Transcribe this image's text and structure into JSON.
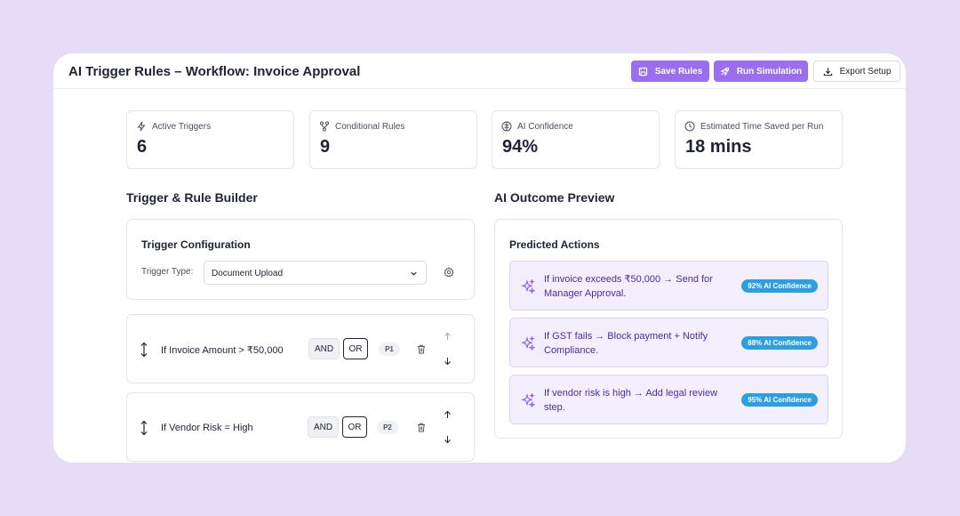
{
  "header": {
    "title": "AI Trigger Rules – Workflow: Invoice Approval",
    "save_label": "Save Rules",
    "run_label": "Run Simulation",
    "export_label": "Export Setup"
  },
  "stats": [
    {
      "label": "Active Triggers",
      "value": "6",
      "icon": "lightning-icon"
    },
    {
      "label": "Conditional Rules",
      "value": "9",
      "icon": "branch-icon"
    },
    {
      "label": "AI Confidence",
      "value": "94%",
      "icon": "brain-icon"
    },
    {
      "label": "Estimated Time Saved per Run",
      "value": "18 mins",
      "icon": "clock-icon"
    }
  ],
  "builder": {
    "title": "Trigger & Rule Builder",
    "config_title": "Trigger Configuration",
    "trigger_type_label": "Trigger Type:",
    "trigger_type_value": "Document Upload",
    "rules": [
      {
        "text": "If Invoice Amount > ₹50,000",
        "and": "AND",
        "or": "OR",
        "priority": "P1"
      },
      {
        "text": "If Vendor Risk = High",
        "and": "AND",
        "or": "OR",
        "priority": "P2"
      }
    ]
  },
  "preview": {
    "title": "AI Outcome Preview",
    "card_title": "Predicted Actions",
    "actions": [
      {
        "text": "If invoice exceeds ₹50,000 → Send for Manager Approval.",
        "confidence": "92% AI Confidence"
      },
      {
        "text": "If GST fails → Block payment + Notify Compliance.",
        "confidence": "88% AI Confidence"
      },
      {
        "text": "If vendor risk is high → Add legal review step.",
        "confidence": "95% AI Confidence"
      }
    ]
  },
  "colors": {
    "background": "#e6dcf7",
    "accent": "#9b6ef0",
    "action_bg": "#f3efff",
    "action_text": "#4b2aa8",
    "badge": "#2d9fe0"
  }
}
